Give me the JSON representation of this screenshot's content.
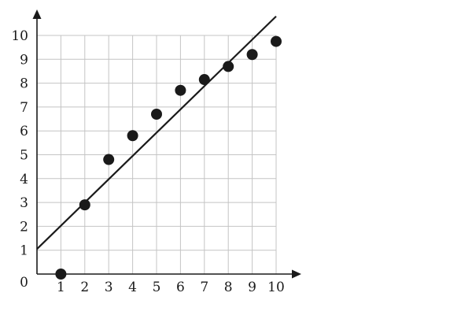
{
  "chart_data": {
    "type": "scatter",
    "title": "",
    "xlabel": "",
    "ylabel": "",
    "origin_label": "0",
    "xlim": [
      0,
      10
    ],
    "ylim": [
      0,
      10
    ],
    "x_ticks": [
      1,
      2,
      3,
      4,
      5,
      6,
      7,
      8,
      9,
      10
    ],
    "y_ticks": [
      1,
      2,
      3,
      4,
      5,
      6,
      7,
      8,
      9,
      10
    ],
    "grid": true,
    "series": [
      {
        "type": "scatter",
        "points": [
          {
            "x": 1,
            "y": 0
          },
          {
            "x": 2,
            "y": 2.9
          },
          {
            "x": 3,
            "y": 4.8
          },
          {
            "x": 4,
            "y": 5.8
          },
          {
            "x": 5,
            "y": 6.7
          },
          {
            "x": 6,
            "y": 7.7
          },
          {
            "x": 7,
            "y": 8.15
          },
          {
            "x": 8,
            "y": 8.7
          },
          {
            "x": 9,
            "y": 9.2
          },
          {
            "x": 10,
            "y": 9.75
          }
        ]
      },
      {
        "type": "line",
        "start": {
          "x": 0,
          "y": 1.05
        },
        "end": {
          "x": 10,
          "y": 10.8
        }
      }
    ],
    "colors": {
      "marks": "#1a1a1a",
      "grid": "#c4c4c4"
    }
  }
}
